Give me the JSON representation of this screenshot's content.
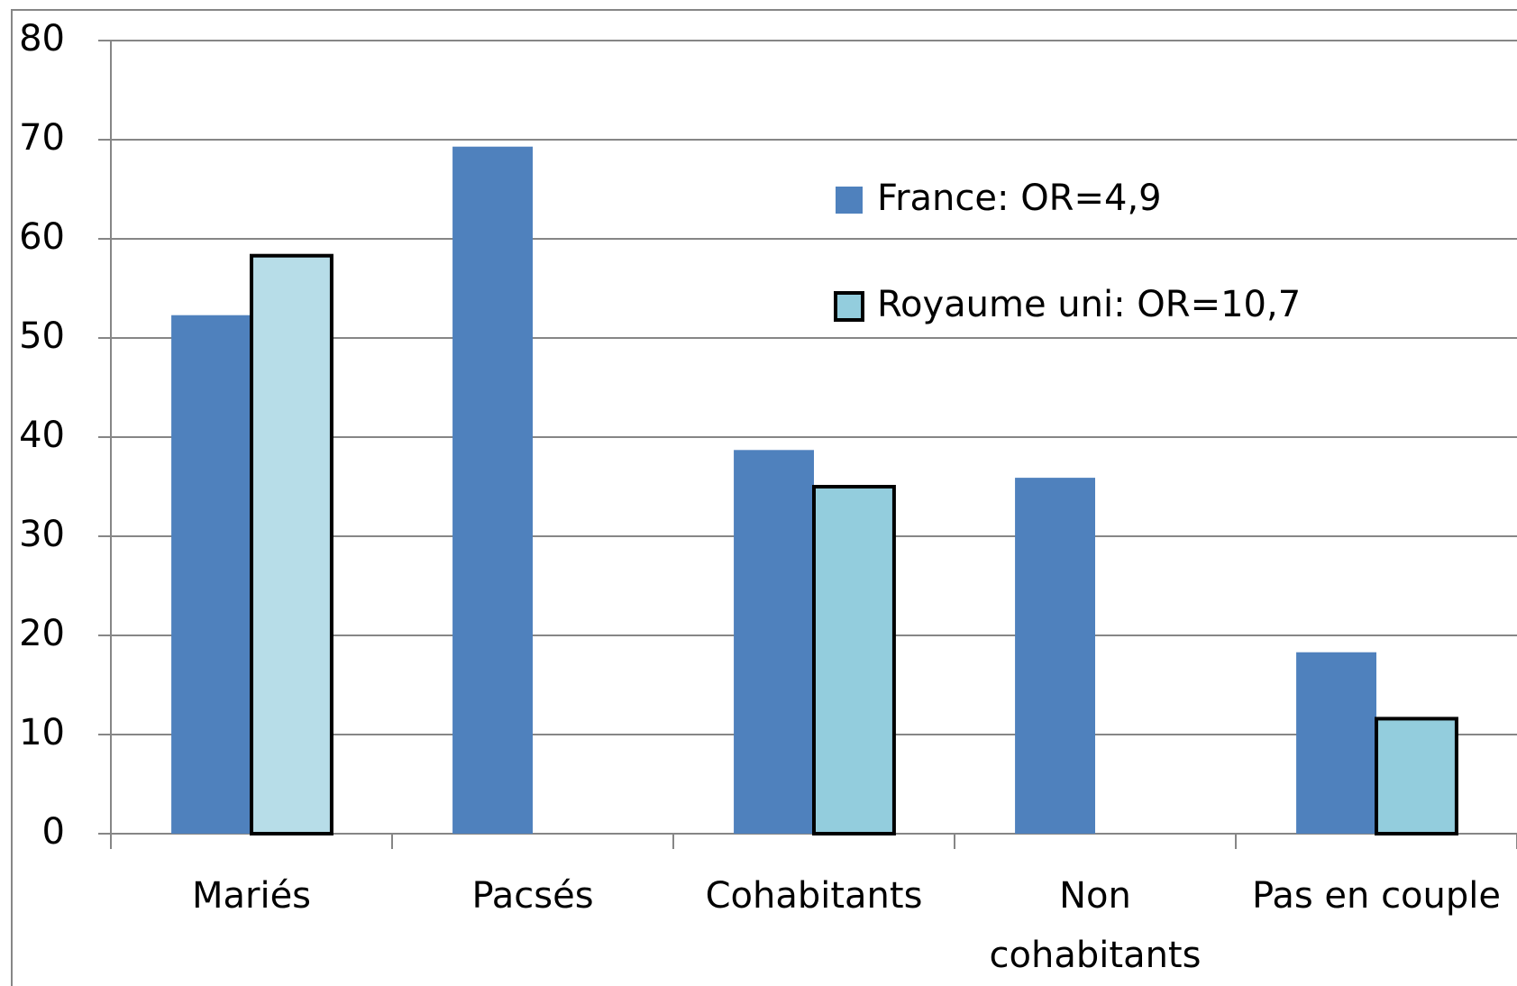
{
  "chart_data": {
    "type": "bar",
    "categories": [
      "Mariés",
      "Pacsés",
      "Cohabitants",
      "Non cohabitants",
      "Pas en couple"
    ],
    "series": [
      {
        "name": "France: OR=4,9",
        "color": "#4f81bd",
        "values": [
          52.3,
          69.3,
          38.7,
          35.9,
          18.3
        ]
      },
      {
        "name": "Royaume uni: OR=10,7",
        "color": "#93cddd",
        "colors": [
          "#b7dde8",
          null,
          "#93cddd",
          null,
          "#93cddd"
        ],
        "values": [
          58.3,
          null,
          35,
          null,
          11.6
        ]
      }
    ],
    "ylim": [
      0,
      80
    ],
    "yticks": [
      0,
      10,
      20,
      30,
      40,
      50,
      60,
      70,
      80
    ],
    "grid": true,
    "legend": "upper right"
  }
}
